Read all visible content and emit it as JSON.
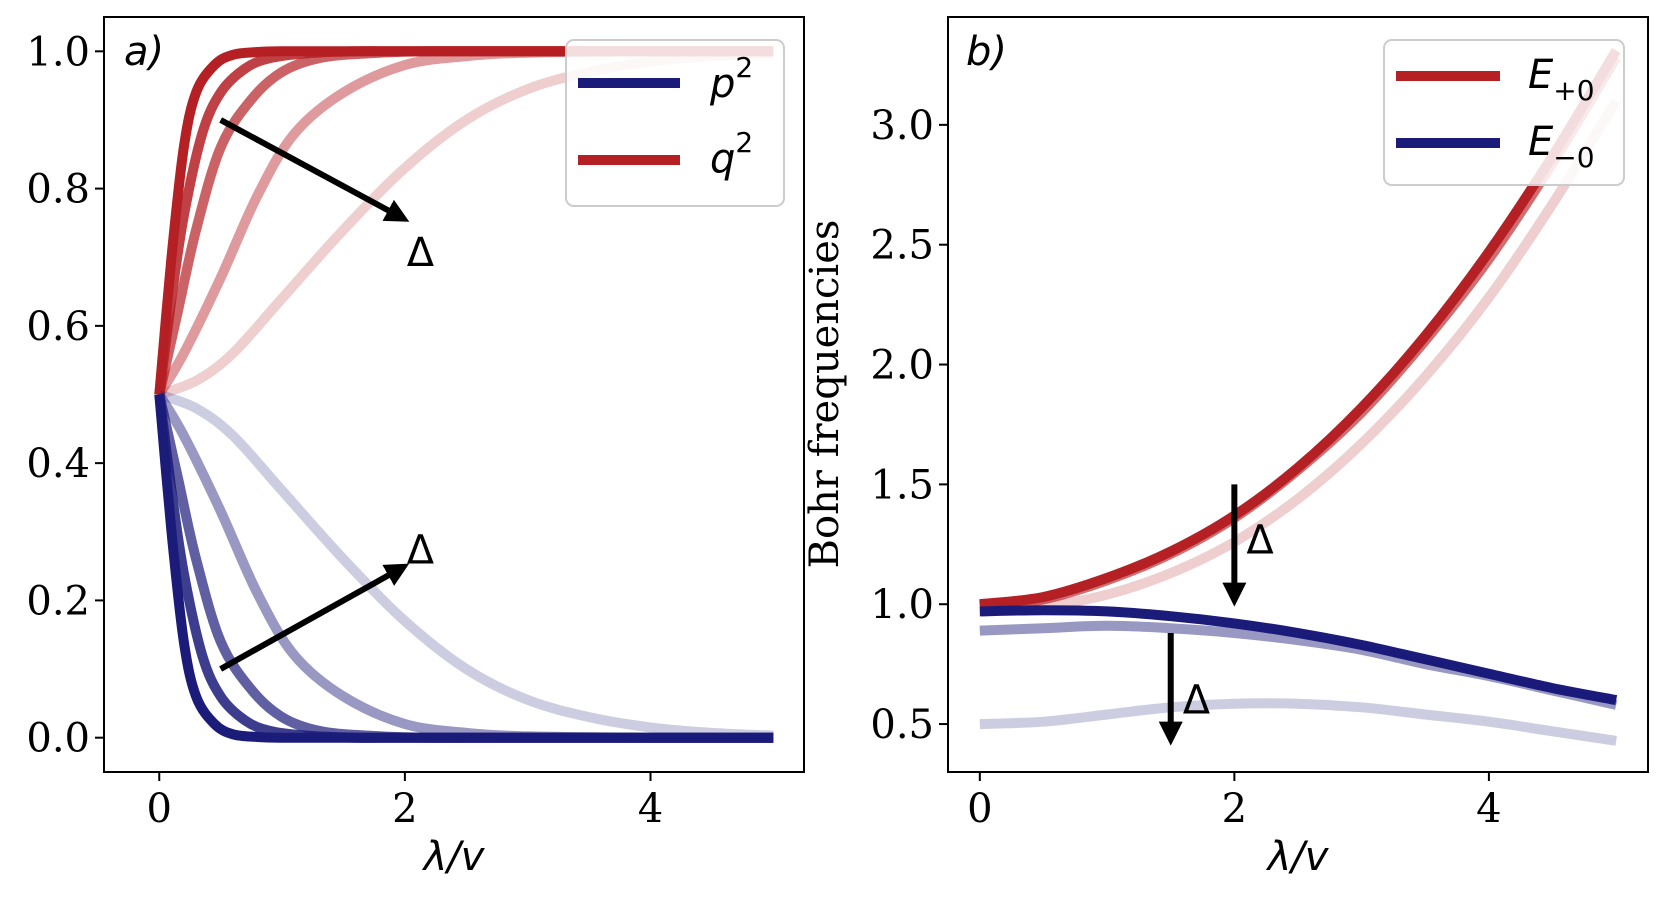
{
  "chart_data": [
    {
      "panel": "a)",
      "type": "line",
      "xlabel": "λ/v",
      "ylabel": "",
      "xlim": [
        -0.45,
        5.25
      ],
      "ylim": [
        -0.05,
        1.05
      ],
      "xticks": [
        0,
        2,
        4
      ],
      "xtick_labels": [
        "0",
        "2",
        "4"
      ],
      "yticks": [
        0.0,
        0.2,
        0.4,
        0.6,
        0.8,
        1.0
      ],
      "ytick_labels": [
        "0.0",
        "0.2",
        "0.4",
        "0.6",
        "0.8",
        "1.0"
      ],
      "legend": {
        "placement": "top-right",
        "entries": [
          {
            "symbol": "p",
            "sup": "2",
            "color": "#1b1b7a"
          },
          {
            "symbol": "q",
            "sup": "2",
            "color": "#b52025"
          }
        ]
      },
      "colors": {
        "p2": "#1b1b7a",
        "q2": "#b52025"
      },
      "series": [
        {
          "name": "q2",
          "color": "#b52025",
          "opacity": 1.0,
          "x": [
            0,
            0.1,
            0.2,
            0.3,
            0.45,
            0.6,
            0.8,
            1.0,
            1.5,
            2.0,
            3.0,
            4.0,
            5.0
          ],
          "values": [
            0.5,
            0.7,
            0.86,
            0.94,
            0.98,
            0.995,
            0.999,
            1.0,
            1.0,
            1.0,
            1.0,
            1.0,
            1.0
          ]
        },
        {
          "name": "q2",
          "color": "#b52025",
          "opacity": 0.85,
          "x": [
            0,
            0.1,
            0.2,
            0.35,
            0.5,
            0.7,
            0.9,
            1.2,
            1.6,
            2.0,
            3.0,
            4.0,
            5.0
          ],
          "values": [
            0.5,
            0.64,
            0.76,
            0.88,
            0.94,
            0.975,
            0.99,
            0.997,
            1.0,
            1.0,
            1.0,
            1.0,
            1.0
          ]
        },
        {
          "name": "q2",
          "color": "#b52025",
          "opacity": 0.7,
          "x": [
            0,
            0.15,
            0.3,
            0.5,
            0.75,
            1.0,
            1.3,
            1.7,
            2.2,
            3.0,
            4.0,
            5.0
          ],
          "values": [
            0.5,
            0.62,
            0.74,
            0.86,
            0.93,
            0.97,
            0.99,
            0.997,
            1.0,
            1.0,
            1.0,
            1.0
          ]
        },
        {
          "name": "q2",
          "color": "#b52025",
          "opacity": 0.45,
          "x": [
            0,
            0.2,
            0.5,
            0.8,
            1.1,
            1.5,
            2.0,
            2.5,
            3.0,
            4.0,
            5.0
          ],
          "values": [
            0.5,
            0.56,
            0.67,
            0.79,
            0.88,
            0.94,
            0.98,
            0.993,
            0.998,
            1.0,
            1.0
          ]
        },
        {
          "name": "q2",
          "color": "#b52025",
          "opacity": 0.22,
          "x": [
            0,
            0.3,
            0.6,
            1.0,
            1.5,
            2.0,
            2.5,
            3.0,
            3.5,
            4.0,
            4.5,
            5.0
          ],
          "values": [
            0.5,
            0.52,
            0.56,
            0.64,
            0.74,
            0.83,
            0.9,
            0.945,
            0.97,
            0.985,
            0.993,
            0.997
          ]
        },
        {
          "name": "p2",
          "color": "#1b1b7a",
          "opacity": 1.0,
          "x": [
            0,
            0.1,
            0.2,
            0.3,
            0.45,
            0.6,
            0.8,
            1.0,
            1.5,
            2.0,
            3.0,
            4.0,
            5.0
          ],
          "values": [
            0.5,
            0.3,
            0.14,
            0.06,
            0.02,
            0.005,
            0.001,
            0.0,
            0.0,
            0.0,
            0.0,
            0.0,
            0.0
          ]
        },
        {
          "name": "p2",
          "color": "#1b1b7a",
          "opacity": 0.85,
          "x": [
            0,
            0.1,
            0.2,
            0.35,
            0.5,
            0.7,
            0.9,
            1.2,
            1.6,
            2.0,
            3.0,
            4.0,
            5.0
          ],
          "values": [
            0.5,
            0.36,
            0.24,
            0.12,
            0.06,
            0.025,
            0.01,
            0.003,
            0.0,
            0.0,
            0.0,
            0.0,
            0.0
          ]
        },
        {
          "name": "p2",
          "color": "#1b1b7a",
          "opacity": 0.7,
          "x": [
            0,
            0.15,
            0.3,
            0.5,
            0.75,
            1.0,
            1.3,
            1.7,
            2.2,
            3.0,
            4.0,
            5.0
          ],
          "values": [
            0.5,
            0.38,
            0.26,
            0.14,
            0.07,
            0.03,
            0.01,
            0.003,
            0.0,
            0.0,
            0.0,
            0.0
          ]
        },
        {
          "name": "p2",
          "color": "#1b1b7a",
          "opacity": 0.45,
          "x": [
            0,
            0.2,
            0.5,
            0.8,
            1.1,
            1.5,
            2.0,
            2.5,
            3.0,
            4.0,
            5.0
          ],
          "values": [
            0.5,
            0.44,
            0.33,
            0.21,
            0.12,
            0.06,
            0.02,
            0.007,
            0.002,
            0.0,
            0.0
          ]
        },
        {
          "name": "p2",
          "color": "#1b1b7a",
          "opacity": 0.22,
          "x": [
            0,
            0.3,
            0.6,
            1.0,
            1.5,
            2.0,
            2.5,
            3.0,
            3.5,
            4.0,
            4.5,
            5.0
          ],
          "values": [
            0.5,
            0.48,
            0.44,
            0.36,
            0.26,
            0.17,
            0.1,
            0.055,
            0.03,
            0.015,
            0.007,
            0.003
          ]
        }
      ],
      "annotations": [
        {
          "text": "Δ",
          "from": [
            0.5,
            0.9
          ],
          "to": [
            1.95,
            0.76
          ]
        },
        {
          "text": "Δ",
          "from": [
            0.5,
            0.1
          ],
          "to": [
            1.95,
            0.245
          ]
        }
      ]
    },
    {
      "panel": "b)",
      "type": "line",
      "xlabel": "λ/v",
      "ylabel": "Bohr frequencies",
      "xlim": [
        -0.25,
        5.25
      ],
      "ylim": [
        0.3,
        3.45
      ],
      "xticks": [
        0,
        2,
        4
      ],
      "xtick_labels": [
        "0",
        "2",
        "4"
      ],
      "yticks": [
        0.5,
        1.0,
        1.5,
        2.0,
        2.5,
        3.0
      ],
      "ytick_labels": [
        "0.5",
        "1.0",
        "1.5",
        "2.0",
        "2.5",
        "3.0"
      ],
      "legend": {
        "placement": "top-right",
        "entries": [
          {
            "symbol": "E",
            "sub": "+0",
            "color": "#b52025"
          },
          {
            "symbol": "E",
            "sub": "−0",
            "color": "#1b1b7a"
          }
        ]
      },
      "colors": {
        "E_plus0": "#b52025",
        "E_minus0": "#1b1b7a"
      },
      "series": [
        {
          "name": "E+0",
          "color": "#b52025",
          "opacity": 1.0,
          "x": [
            0,
            0.5,
            1.0,
            1.5,
            2.0,
            2.5,
            3.0,
            3.5,
            4.0,
            4.5,
            5.0
          ],
          "values": [
            1.0,
            1.03,
            1.11,
            1.22,
            1.37,
            1.57,
            1.82,
            2.12,
            2.47,
            2.87,
            3.31
          ]
        },
        {
          "name": "E+0",
          "color": "#b52025",
          "opacity": 0.65,
          "x": [
            0,
            0.5,
            1.0,
            1.5,
            2.0,
            2.5,
            3.0,
            3.5,
            4.0,
            4.5,
            5.0
          ],
          "values": [
            0.99,
            1.02,
            1.1,
            1.21,
            1.36,
            1.56,
            1.8,
            2.1,
            2.44,
            2.84,
            3.28
          ]
        },
        {
          "name": "E+0",
          "color": "#b52025",
          "opacity": 0.22,
          "x": [
            0,
            0.5,
            1.0,
            1.5,
            2.0,
            2.5,
            3.0,
            3.5,
            4.0,
            4.5,
            5.0
          ],
          "values": [
            0.97,
            0.99,
            1.04,
            1.13,
            1.26,
            1.44,
            1.67,
            1.95,
            2.28,
            2.67,
            3.1
          ]
        },
        {
          "name": "E-0",
          "color": "#1b1b7a",
          "opacity": 1.0,
          "x": [
            0,
            0.5,
            1.0,
            1.5,
            2.0,
            2.5,
            3.0,
            3.5,
            4.0,
            4.5,
            5.0
          ],
          "values": [
            0.97,
            0.975,
            0.97,
            0.95,
            0.92,
            0.88,
            0.83,
            0.77,
            0.71,
            0.65,
            0.6
          ]
        },
        {
          "name": "E-0",
          "color": "#1b1b7a",
          "opacity": 0.45,
          "x": [
            0,
            0.5,
            1.0,
            1.5,
            2.0,
            2.5,
            3.0,
            3.5,
            4.0,
            4.5,
            5.0
          ],
          "values": [
            0.89,
            0.9,
            0.91,
            0.9,
            0.88,
            0.85,
            0.81,
            0.75,
            0.7,
            0.64,
            0.58
          ]
        },
        {
          "name": "E-0",
          "color": "#1b1b7a",
          "opacity": 0.22,
          "x": [
            0,
            0.5,
            1.0,
            1.5,
            2.0,
            2.5,
            3.0,
            3.5,
            4.0,
            4.5,
            5.0
          ],
          "values": [
            0.5,
            0.51,
            0.54,
            0.57,
            0.585,
            0.585,
            0.57,
            0.54,
            0.51,
            0.47,
            0.43
          ]
        }
      ],
      "annotations": [
        {
          "text": "Δ",
          "from": [
            2.0,
            1.5
          ],
          "to": [
            2.0,
            1.04
          ]
        },
        {
          "text": "Δ",
          "from": [
            1.5,
            0.88
          ],
          "to": [
            1.5,
            0.46
          ]
        }
      ]
    }
  ]
}
